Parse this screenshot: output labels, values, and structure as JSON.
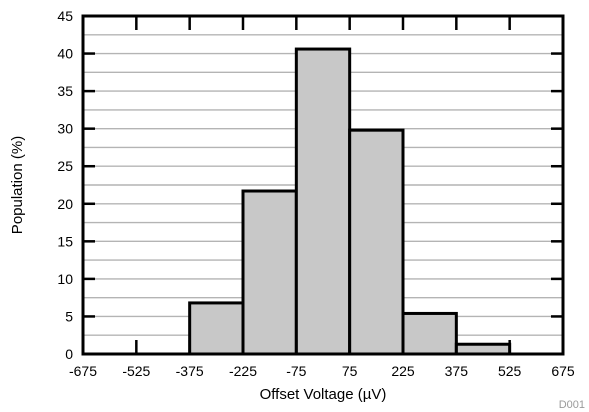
{
  "chart_data": {
    "type": "bar",
    "xlabel": "Offset Voltage (µV)",
    "ylabel": "Population (%)",
    "x_ticks": [
      -675,
      -525,
      -375,
      -225,
      -75,
      75,
      225,
      375,
      525,
      675
    ],
    "y_ticks": [
      0,
      5,
      10,
      15,
      20,
      25,
      30,
      35,
      40,
      45
    ],
    "xlim": [
      -675,
      675
    ],
    "ylim": [
      0,
      45
    ],
    "grid": true,
    "legend": "none",
    "bins": [
      {
        "start": -525,
        "end": -375,
        "value": 0
      },
      {
        "start": -375,
        "end": -225,
        "value": 6.8
      },
      {
        "start": -225,
        "end": -75,
        "value": 21.7
      },
      {
        "start": -75,
        "end": 75,
        "value": 40.6
      },
      {
        "start": 75,
        "end": 225,
        "value": 29.8
      },
      {
        "start": 225,
        "end": 375,
        "value": 5.4
      },
      {
        "start": 375,
        "end": 525,
        "value": 1.3
      }
    ],
    "bar_color": "#c8c8c8",
    "grid_color": "#b4b4b4",
    "watermark": "D001"
  }
}
